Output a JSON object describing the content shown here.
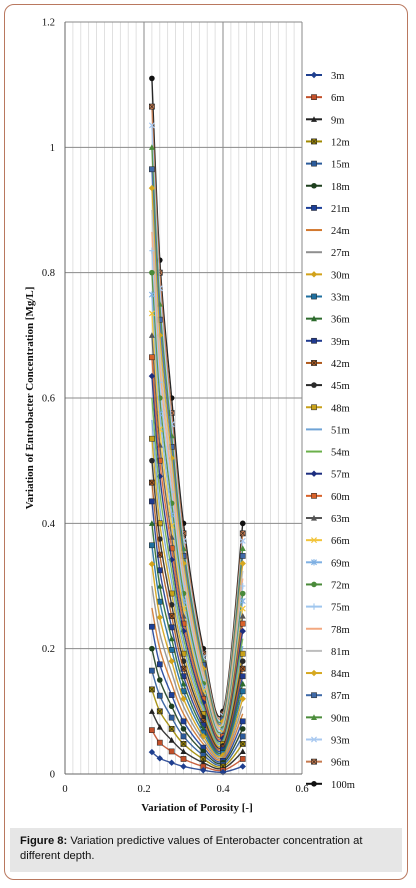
{
  "caption": {
    "label": "Figure 8:",
    "text": " Variation predictive values of Enterobacter concentration at different depth."
  },
  "chart_data": {
    "type": "line",
    "xlabel": "Variation of Porosity [-]",
    "ylabel": "Variation of Entrobacter Concentration [Mg/L]",
    "xlim": [
      0,
      0.6
    ],
    "ylim": [
      0,
      1.2
    ],
    "xticks": [
      "0",
      "0.2",
      "0.4",
      "0.6"
    ],
    "yticks": [
      "0",
      "0.2",
      "0.4",
      "0.6",
      "0.8",
      "1",
      "1.2"
    ],
    "grid": true,
    "legend_position": "right",
    "x": [
      0.22,
      0.24,
      0.27,
      0.3,
      0.35,
      0.4,
      0.45
    ],
    "series": [
      {
        "name": "3m",
        "values": [
          0.035,
          0.025,
          0.018,
          0.012,
          0.006,
          0.003,
          0.012
        ]
      },
      {
        "name": "6m",
        "values": [
          0.07,
          0.05,
          0.036,
          0.024,
          0.012,
          0.006,
          0.024
        ]
      },
      {
        "name": "9m",
        "values": [
          0.1,
          0.075,
          0.054,
          0.036,
          0.018,
          0.009,
          0.036
        ]
      },
      {
        "name": "12m",
        "values": [
          0.135,
          0.1,
          0.072,
          0.048,
          0.024,
          0.012,
          0.048
        ]
      },
      {
        "name": "15m",
        "values": [
          0.165,
          0.125,
          0.09,
          0.06,
          0.03,
          0.015,
          0.06
        ]
      },
      {
        "name": "18m",
        "values": [
          0.2,
          0.15,
          0.108,
          0.072,
          0.036,
          0.018,
          0.072
        ]
      },
      {
        "name": "21m",
        "values": [
          0.235,
          0.175,
          0.126,
          0.084,
          0.042,
          0.021,
          0.084
        ]
      },
      {
        "name": "24m",
        "values": [
          0.265,
          0.2,
          0.144,
          0.096,
          0.048,
          0.024,
          0.096
        ]
      },
      {
        "name": "27m",
        "values": [
          0.3,
          0.225,
          0.162,
          0.108,
          0.054,
          0.027,
          0.108
        ]
      },
      {
        "name": "30m",
        "values": [
          0.335,
          0.25,
          0.18,
          0.12,
          0.06,
          0.03,
          0.12
        ]
      },
      {
        "name": "33m",
        "values": [
          0.365,
          0.275,
          0.198,
          0.132,
          0.066,
          0.033,
          0.132
        ]
      },
      {
        "name": "36m",
        "values": [
          0.4,
          0.3,
          0.216,
          0.144,
          0.072,
          0.036,
          0.144
        ]
      },
      {
        "name": "39m",
        "values": [
          0.435,
          0.325,
          0.234,
          0.156,
          0.078,
          0.039,
          0.156
        ]
      },
      {
        "name": "42m",
        "values": [
          0.465,
          0.35,
          0.252,
          0.168,
          0.084,
          0.042,
          0.168
        ]
      },
      {
        "name": "45m",
        "values": [
          0.5,
          0.375,
          0.27,
          0.18,
          0.09,
          0.045,
          0.18
        ]
      },
      {
        "name": "48m",
        "values": [
          0.535,
          0.4,
          0.288,
          0.192,
          0.096,
          0.048,
          0.192
        ]
      },
      {
        "name": "51m",
        "values": [
          0.565,
          0.425,
          0.306,
          0.204,
          0.102,
          0.051,
          0.204
        ]
      },
      {
        "name": "54m",
        "values": [
          0.6,
          0.45,
          0.324,
          0.216,
          0.108,
          0.054,
          0.216
        ]
      },
      {
        "name": "57m",
        "values": [
          0.635,
          0.475,
          0.342,
          0.228,
          0.114,
          0.057,
          0.228
        ]
      },
      {
        "name": "60m",
        "values": [
          0.665,
          0.5,
          0.36,
          0.24,
          0.12,
          0.06,
          0.24
        ]
      },
      {
        "name": "63m",
        "values": [
          0.7,
          0.525,
          0.378,
          0.252,
          0.126,
          0.063,
          0.252
        ]
      },
      {
        "name": "66m",
        "values": [
          0.735,
          0.55,
          0.396,
          0.264,
          0.132,
          0.066,
          0.264
        ]
      },
      {
        "name": "69m",
        "values": [
          0.765,
          0.575,
          0.414,
          0.276,
          0.138,
          0.069,
          0.276
        ]
      },
      {
        "name": "72m",
        "values": [
          0.8,
          0.6,
          0.432,
          0.288,
          0.144,
          0.072,
          0.288
        ]
      },
      {
        "name": "75m",
        "values": [
          0.835,
          0.625,
          0.45,
          0.3,
          0.15,
          0.075,
          0.3
        ]
      },
      {
        "name": "78m",
        "values": [
          0.865,
          0.65,
          0.468,
          0.312,
          0.156,
          0.078,
          0.312
        ]
      },
      {
        "name": "81m",
        "values": [
          0.9,
          0.675,
          0.486,
          0.324,
          0.162,
          0.081,
          0.324
        ]
      },
      {
        "name": "84m",
        "values": [
          0.935,
          0.7,
          0.504,
          0.336,
          0.168,
          0.084,
          0.336
        ]
      },
      {
        "name": "87m",
        "values": [
          0.965,
          0.725,
          0.522,
          0.348,
          0.174,
          0.087,
          0.348
        ]
      },
      {
        "name": "90m",
        "values": [
          1.0,
          0.75,
          0.54,
          0.36,
          0.18,
          0.09,
          0.36
        ]
      },
      {
        "name": "93m",
        "values": [
          1.035,
          0.775,
          0.558,
          0.372,
          0.186,
          0.093,
          0.372
        ]
      },
      {
        "name": "96m",
        "values": [
          1.065,
          0.8,
          0.576,
          0.384,
          0.192,
          0.096,
          0.384
        ]
      },
      {
        "name": "100m",
        "values": [
          1.11,
          0.82,
          0.6,
          0.4,
          0.2,
          0.1,
          0.4
        ]
      }
    ],
    "colors": [
      "#1f3f8f",
      "#c2502a",
      "#222222",
      "#a08900",
      "#2b5b9b",
      "#1e3f1e",
      "#1c3f99",
      "#d2782e",
      "#8f8f8f",
      "#d2a21a",
      "#1f6f9f",
      "#2d6b2d",
      "#203a8f",
      "#b05a1d",
      "#2a2a2a",
      "#c8a11a",
      "#6fa3d6",
      "#6bb04a",
      "#1c2d7f",
      "#d9622a",
      "#555555",
      "#f2c43a",
      "#7fb0e3",
      "#4a8a3a",
      "#9fc6ee",
      "#f3a880",
      "#bdbdbd",
      "#d6a820",
      "#3f6aa8",
      "#4c8d3c",
      "#a9c9f0",
      "#c67a4e",
      "#111111"
    ],
    "markers": [
      "diamond",
      "square",
      "triangle",
      "xsquare",
      "square",
      "circle",
      "square",
      "none",
      "none",
      "diamond",
      "square",
      "triangle",
      "square",
      "xsquare",
      "circle",
      "square",
      "none",
      "none",
      "diamond",
      "square",
      "triangle",
      "x",
      "star",
      "circle",
      "plus",
      "none",
      "none",
      "diamond",
      "square",
      "triangle",
      "x",
      "xsquare",
      "circle"
    ]
  }
}
